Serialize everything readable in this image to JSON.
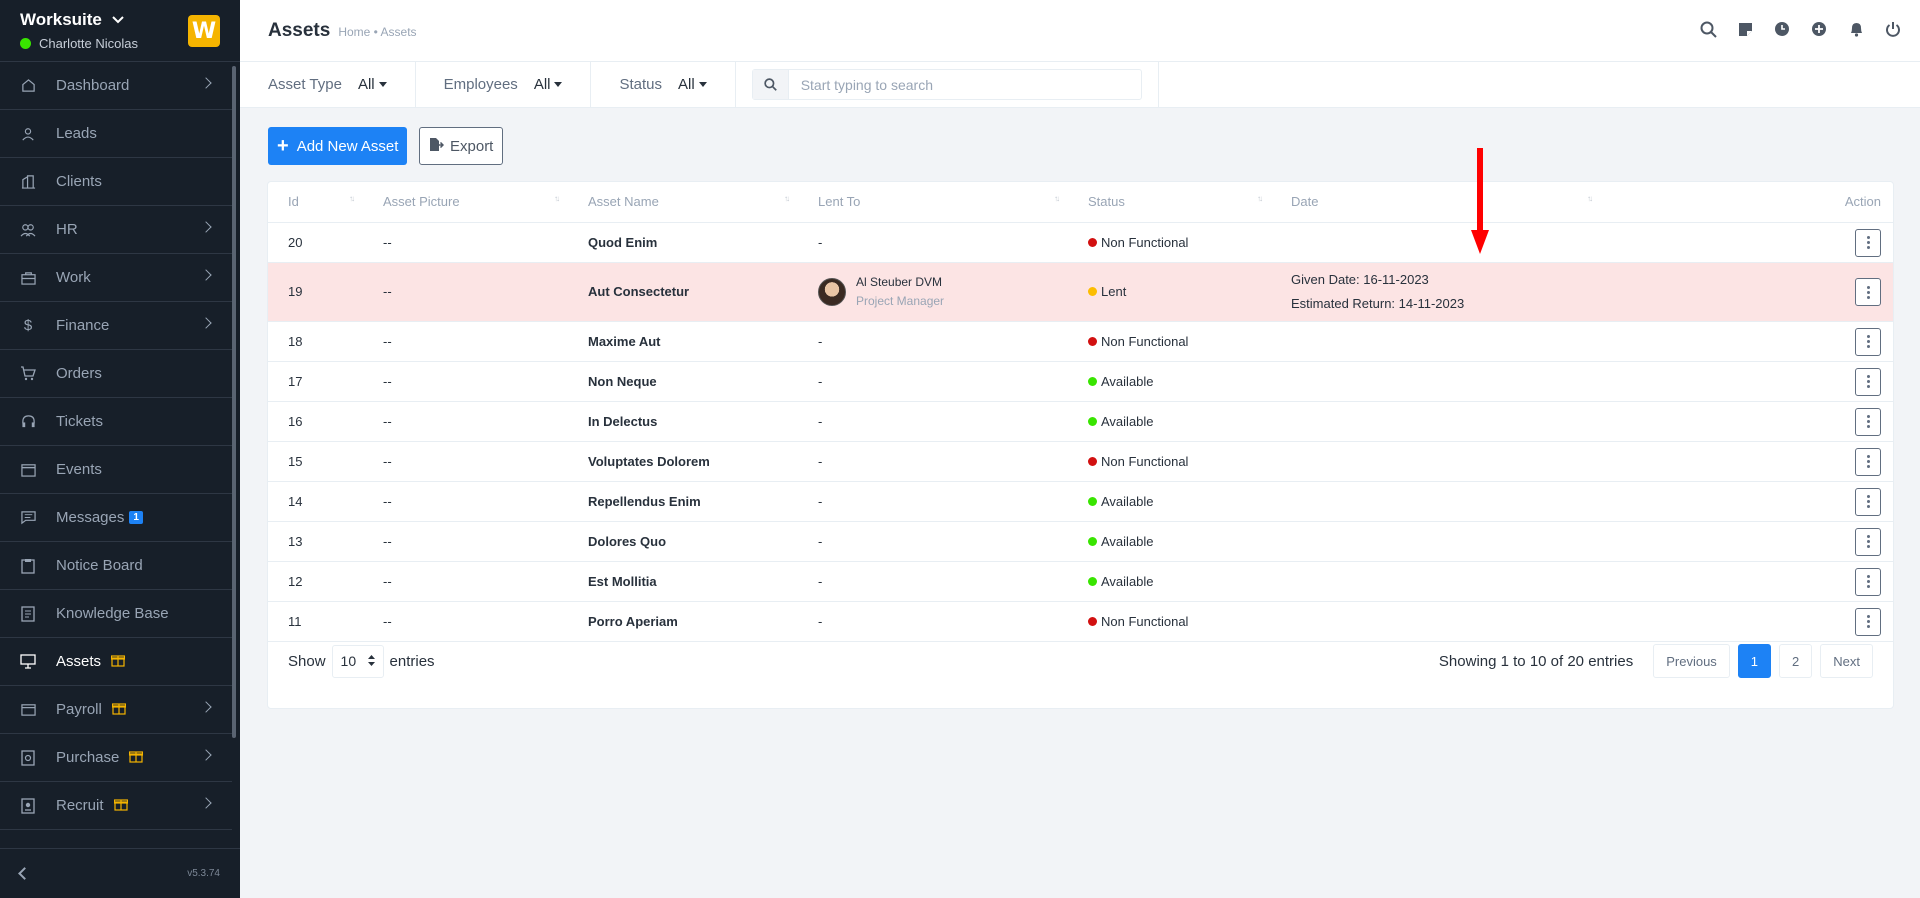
{
  "sidebar": {
    "company": "Worksuite",
    "user": "Charlotte Nicolas",
    "logo_letter": "W",
    "version": "v5.3.74",
    "items": [
      {
        "label": "Dashboard",
        "icon": "home-icon",
        "arrow": true
      },
      {
        "label": "Leads",
        "icon": "user-icon",
        "arrow": false
      },
      {
        "label": "Clients",
        "icon": "building-icon",
        "arrow": false
      },
      {
        "label": "HR",
        "icon": "people-icon",
        "arrow": true
      },
      {
        "label": "Work",
        "icon": "briefcase-icon",
        "arrow": true
      },
      {
        "label": "Finance",
        "icon": "dollar-icon",
        "arrow": true
      },
      {
        "label": "Orders",
        "icon": "cart-icon",
        "arrow": false
      },
      {
        "label": "Tickets",
        "icon": "headset-icon",
        "arrow": false
      },
      {
        "label": "Events",
        "icon": "calendar-icon",
        "arrow": false
      },
      {
        "label": "Messages",
        "icon": "chat-icon",
        "arrow": false,
        "badge": "1"
      },
      {
        "label": "Notice Board",
        "icon": "clipboard-icon",
        "arrow": false
      },
      {
        "label": "Knowledge Base",
        "icon": "book-icon",
        "arrow": false
      },
      {
        "label": "Assets",
        "icon": "monitor-icon",
        "arrow": false,
        "gift": true,
        "active": true
      },
      {
        "label": "Payroll",
        "icon": "wallet-icon",
        "arrow": true,
        "gift": true
      },
      {
        "label": "Purchase",
        "icon": "receipt-icon",
        "arrow": true,
        "gift": true
      },
      {
        "label": "Recruit",
        "icon": "badge-icon",
        "arrow": true,
        "gift": true
      }
    ]
  },
  "header": {
    "title": "Assets",
    "breadcrumb": "Home • Assets"
  },
  "filters": {
    "asset_type_label": "Asset Type",
    "asset_type_value": "All",
    "employees_label": "Employees",
    "employees_value": "All",
    "status_label": "Status",
    "status_value": "All",
    "search_placeholder": "Start typing to search"
  },
  "actions": {
    "add_label": "Add New Asset",
    "export_label": "Export"
  },
  "table": {
    "columns": [
      "Id",
      "Asset Picture",
      "Asset Name",
      "Lent To",
      "Status",
      "Date",
      "Action"
    ],
    "rows": [
      {
        "id": "20",
        "picture": "--",
        "name": "Quod Enim",
        "lent_to": "-",
        "status": "Non Functional",
        "status_color": "#d21010"
      },
      {
        "id": "19",
        "picture": "--",
        "name": "Aut Consectetur",
        "lent_to_name": "Al Steuber DVM",
        "lent_to_role": "Project Manager",
        "status": "Lent",
        "status_color": "#fcbd01",
        "given_date": "Given Date: 16-11-2023",
        "return_date": "Estimated Return: 14-11-2023"
      },
      {
        "id": "18",
        "picture": "--",
        "name": "Maxime Aut",
        "lent_to": "-",
        "status": "Non Functional",
        "status_color": "#d21010"
      },
      {
        "id": "17",
        "picture": "--",
        "name": "Non Neque",
        "lent_to": "-",
        "status": "Available",
        "status_color": "#39e500"
      },
      {
        "id": "16",
        "picture": "--",
        "name": "In Delectus",
        "lent_to": "-",
        "status": "Available",
        "status_color": "#39e500"
      },
      {
        "id": "15",
        "picture": "--",
        "name": "Voluptates Dolorem",
        "lent_to": "-",
        "status": "Non Functional",
        "status_color": "#d21010"
      },
      {
        "id": "14",
        "picture": "--",
        "name": "Repellendus Enim",
        "lent_to": "-",
        "status": "Available",
        "status_color": "#39e500"
      },
      {
        "id": "13",
        "picture": "--",
        "name": "Dolores Quo",
        "lent_to": "-",
        "status": "Available",
        "status_color": "#39e500"
      },
      {
        "id": "12",
        "picture": "--",
        "name": "Est Mollitia",
        "lent_to": "-",
        "status": "Available",
        "status_color": "#39e500"
      },
      {
        "id": "11",
        "picture": "--",
        "name": "Porro Aperiam",
        "lent_to": "-",
        "status": "Non Functional",
        "status_color": "#d21010"
      }
    ]
  },
  "footer": {
    "show_label": "Show",
    "page_size": "10",
    "entries_label": "entries",
    "info": "Showing 1 to 10 of 20 entries",
    "prev": "Previous",
    "pages": [
      "1",
      "2"
    ],
    "next": "Next"
  },
  "colors": {
    "accent": "#1d82f5",
    "sidebar_bg": "#171f29",
    "highlight_row": "#fce4e4",
    "annotation": "#ff0000"
  }
}
